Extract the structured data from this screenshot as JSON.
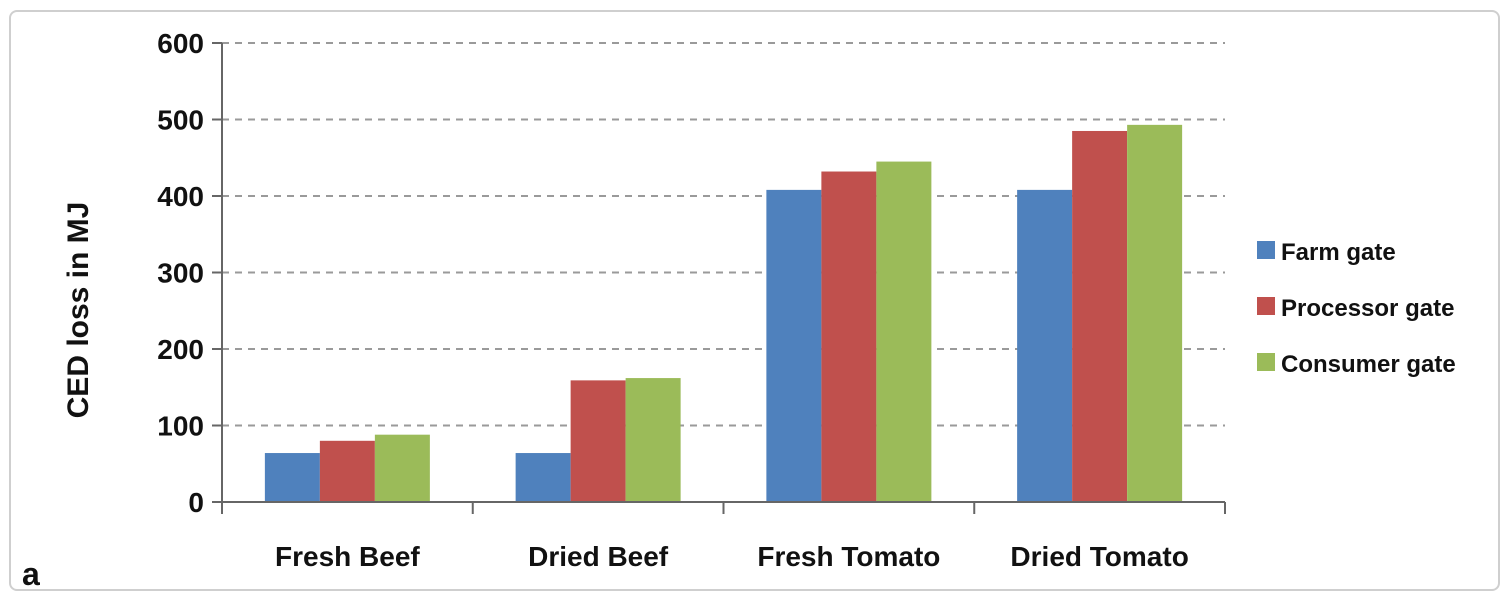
{
  "chart_data": {
    "type": "bar",
    "categories": [
      "Fresh Beef",
      "Dried Beef",
      "Fresh Tomato",
      "Dried Tomato"
    ],
    "series": [
      {
        "name": "Farm gate",
        "color": "#4F81BD",
        "values": [
          64,
          64,
          408,
          408
        ]
      },
      {
        "name": "Processor gate",
        "color": "#C0504D",
        "values": [
          80,
          159,
          432,
          485
        ]
      },
      {
        "name": "Consumer gate",
        "color": "#9BBB59",
        "values": [
          88,
          162,
          445,
          493
        ]
      }
    ],
    "ylabel": "CED loss in MJ",
    "ylim": [
      0,
      600
    ],
    "yticks": [
      0,
      100,
      200,
      300,
      400,
      500,
      600
    ],
    "grid": true,
    "grid_style": "dashed",
    "legend_position": "right"
  },
  "panel_label": "a"
}
